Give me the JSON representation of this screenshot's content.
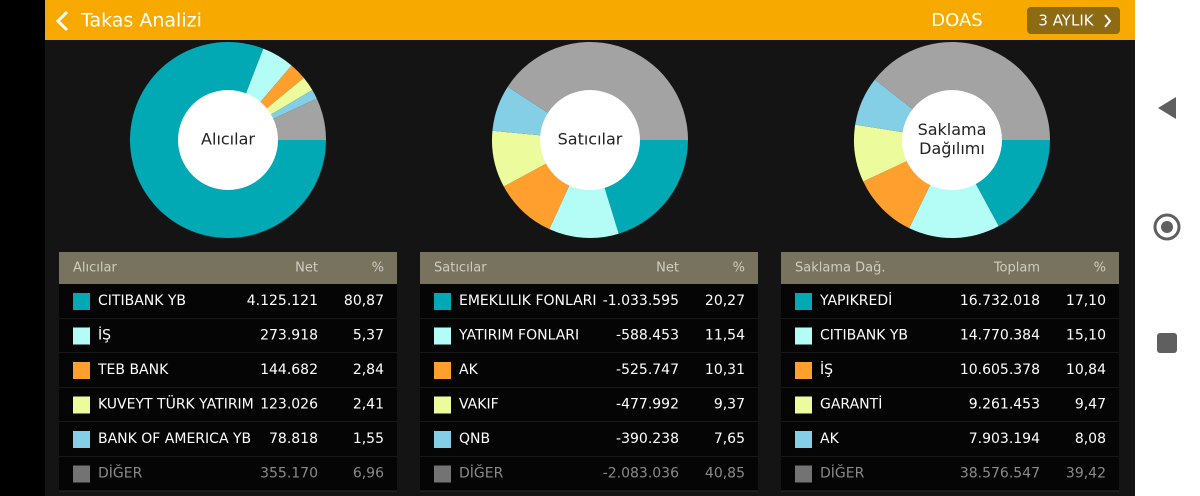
{
  "header": {
    "title": "Takas Analizi",
    "symbol": "DOAS",
    "period": "3 AYLIK"
  },
  "panels": [
    {
      "center_label": [
        "Alıcılar"
      ],
      "columns": [
        "Alıcılar",
        "Net",
        "%"
      ],
      "rows": [
        {
          "name": "CITIBANK YB",
          "color": "#00a9b3",
          "amount": "4.125.121",
          "share": 80.87,
          "share_label": "80,87"
        },
        {
          "name": "İŞ",
          "color": "#b4fdf6",
          "amount": "273.918",
          "share": 5.37,
          "share_label": "5,37"
        },
        {
          "name": "TEB BANK",
          "color": "#ff9f2e",
          "amount": "144.682",
          "share": 2.84,
          "share_label": "2,84"
        },
        {
          "name": "KUVEYT TÜRK YATIRIM",
          "color": "#ecfb9c",
          "amount": "123.026",
          "share": 2.41,
          "share_label": "2,41"
        },
        {
          "name": "BANK OF AMERICA YB",
          "color": "#84cfe6",
          "amount": "78.818",
          "share": 1.55,
          "share_label": "1,55"
        },
        {
          "name": "DİĞER",
          "color": "#a3a3a3",
          "amount": "355.170",
          "share": 6.96,
          "share_label": "6,96"
        }
      ]
    },
    {
      "center_label": [
        "Satıcılar"
      ],
      "columns": [
        "Satıcılar",
        "Net",
        "%"
      ],
      "rows": [
        {
          "name": "EMEKLILIK FONLARI",
          "color": "#00a9b3",
          "amount": "-1.033.595",
          "share": 20.27,
          "share_label": "20,27"
        },
        {
          "name": "YATIRIM FONLARI",
          "color": "#b4fdf6",
          "amount": "-588.453",
          "share": 11.54,
          "share_label": "11,54"
        },
        {
          "name": "AK",
          "color": "#ff9f2e",
          "amount": "-525.747",
          "share": 10.31,
          "share_label": "10,31"
        },
        {
          "name": "VAKIF",
          "color": "#ecfb9c",
          "amount": "-477.992",
          "share": 9.37,
          "share_label": "9,37"
        },
        {
          "name": "QNB",
          "color": "#84cfe6",
          "amount": "-390.238",
          "share": 7.65,
          "share_label": "7,65"
        },
        {
          "name": "DİĞER",
          "color": "#a3a3a3",
          "amount": "-2.083.036",
          "share": 40.85,
          "share_label": "40,85"
        }
      ]
    },
    {
      "center_label": [
        "Saklama",
        "Dağılımı"
      ],
      "columns": [
        "Saklama Dağ.",
        "Toplam",
        "%"
      ],
      "rows": [
        {
          "name": "YAPIKREDİ",
          "color": "#00a9b3",
          "amount": "16.732.018",
          "share": 17.1,
          "share_label": "17,10"
        },
        {
          "name": "CITIBANK YB",
          "color": "#b4fdf6",
          "amount": "14.770.384",
          "share": 15.1,
          "share_label": "15,10"
        },
        {
          "name": "İŞ",
          "color": "#ff9f2e",
          "amount": "10.605.378",
          "share": 10.84,
          "share_label": "10,84"
        },
        {
          "name": "GARANTİ",
          "color": "#ecfb9c",
          "amount": "9.261.453",
          "share": 9.47,
          "share_label": "9,47"
        },
        {
          "name": "AK",
          "color": "#84cfe6",
          "amount": "7.903.194",
          "share": 8.08,
          "share_label": "8,08"
        },
        {
          "name": "DİĞER",
          "color": "#a3a3a3",
          "amount": "38.576.547",
          "share": 39.42,
          "share_label": "39,42"
        }
      ]
    }
  ]
}
